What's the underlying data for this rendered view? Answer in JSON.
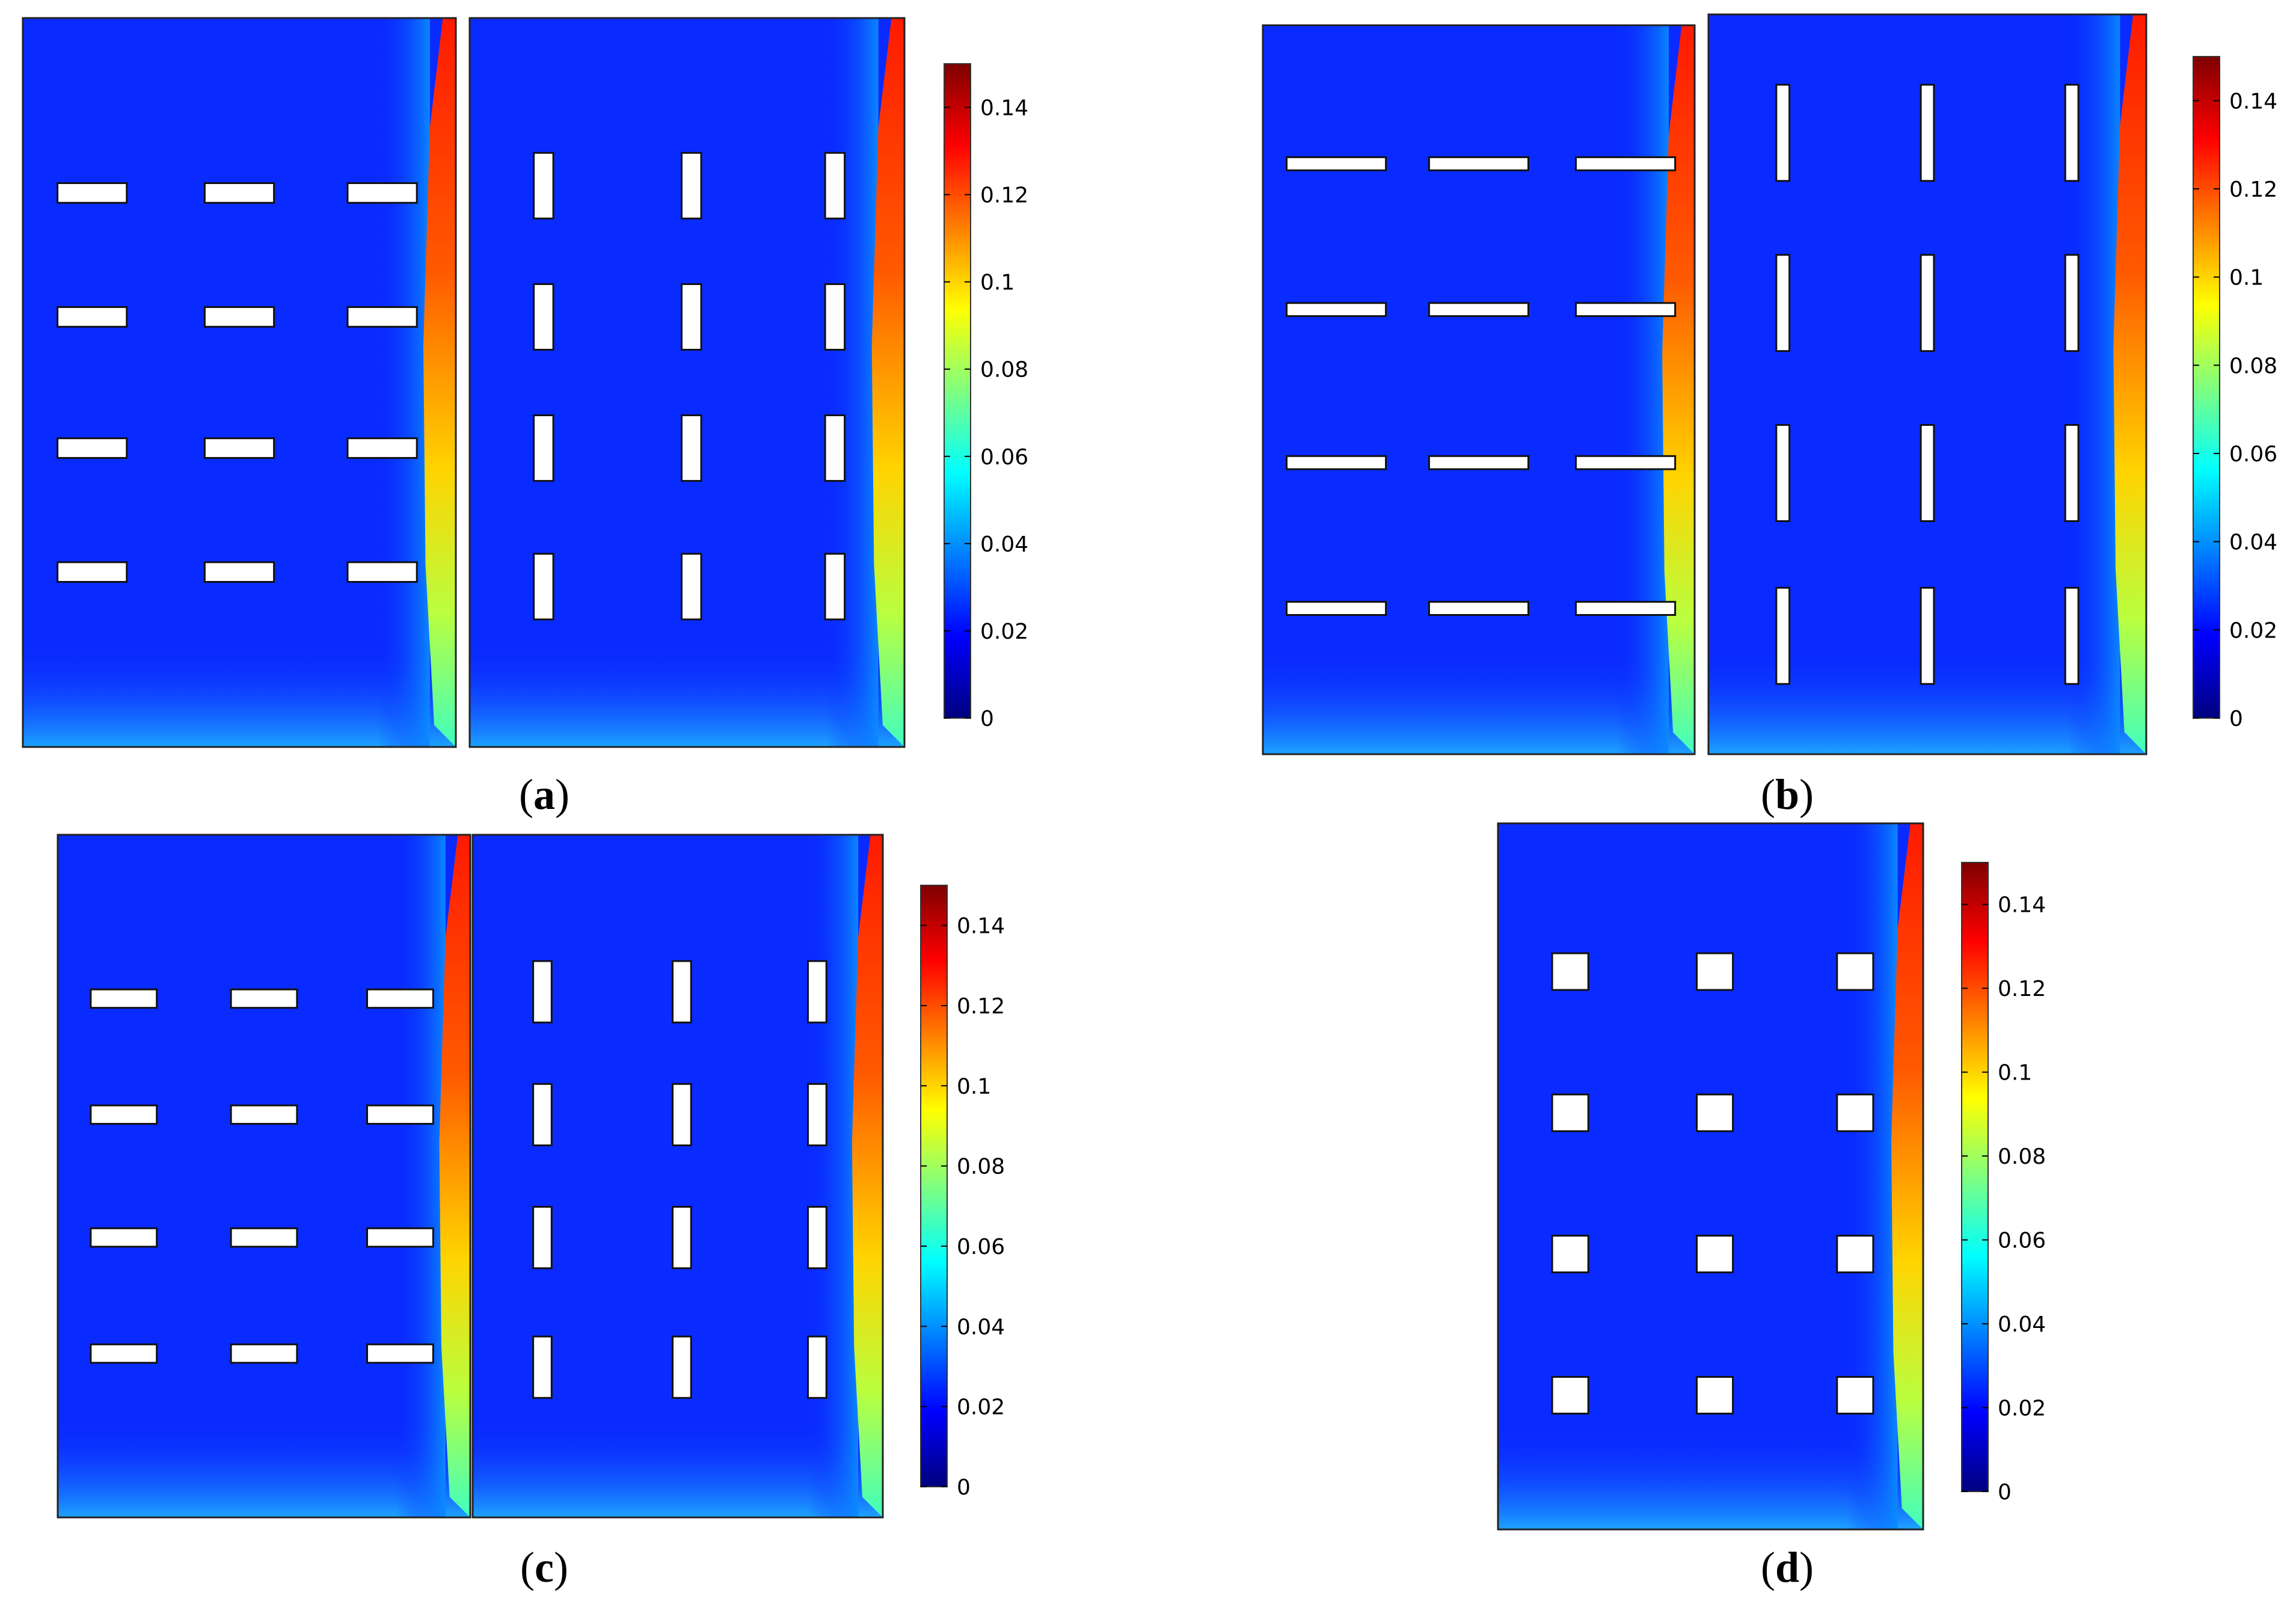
{
  "figure": {
    "colorbar": {
      "min": 0,
      "max": 0.15,
      "ticks": [
        {
          "value": 0,
          "label": "0"
        },
        {
          "value": 0.02,
          "label": "0.02"
        },
        {
          "value": 0.04,
          "label": "0.04"
        },
        {
          "value": 0.06,
          "label": "0.06"
        },
        {
          "value": 0.08,
          "label": "0.08"
        },
        {
          "value": 0.1,
          "label": "0.1"
        },
        {
          "value": 0.12,
          "label": "0.12"
        },
        {
          "value": 0.14,
          "label": "0.14"
        }
      ],
      "colormap": [
        "#00007f",
        "#0000ff",
        "#007fff",
        "#00ffff",
        "#7fff7f",
        "#ffff00",
        "#ff7f00",
        "#ff0000",
        "#7f0000"
      ]
    },
    "panels": [
      {
        "id": "a",
        "label_open": "(",
        "label_letter": "a",
        "label_close": ")"
      },
      {
        "id": "b",
        "label_open": "(",
        "label_letter": "b",
        "label_close": ")"
      },
      {
        "id": "c",
        "label_open": "(",
        "label_letter": "c",
        "label_close": ")"
      },
      {
        "id": "d",
        "label_open": "(",
        "label_letter": "d",
        "label_close": ")"
      }
    ]
  }
}
